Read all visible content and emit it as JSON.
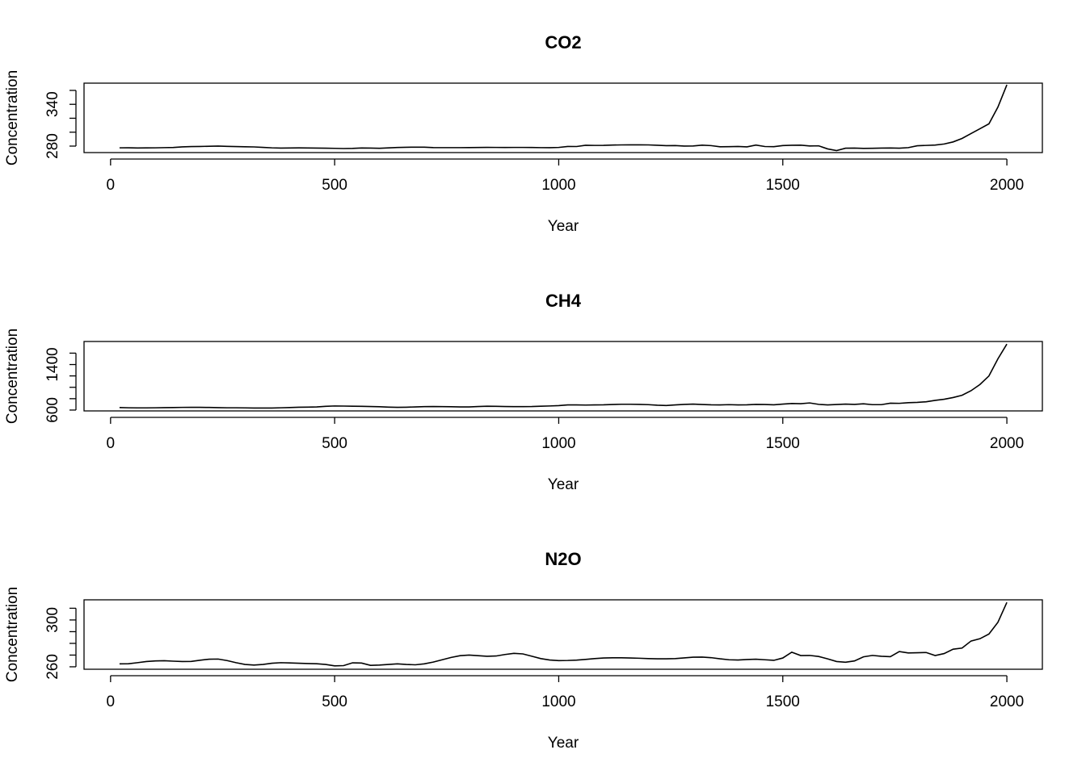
{
  "chart_data": [
    {
      "type": "line",
      "title": "CO2",
      "xlabel": "Year",
      "ylabel": "Concentration",
      "color": "#000000",
      "xlim": [
        -59.2,
        2079.2
      ],
      "xticks": [
        0,
        500,
        1000,
        1500,
        2000
      ],
      "ylim": [
        270.7,
        370.4
      ],
      "yticks": [
        280,
        300,
        320,
        340,
        360
      ],
      "series": [
        {
          "name": "CO2",
          "color": "#000000",
          "x": [
            20,
            40,
            60,
            80,
            100,
            120,
            140,
            160,
            180,
            200,
            220,
            240,
            260,
            280,
            300,
            320,
            340,
            360,
            380,
            400,
            420,
            440,
            460,
            480,
            500,
            520,
            540,
            560,
            580,
            600,
            620,
            640,
            660,
            680,
            700,
            720,
            740,
            760,
            780,
            800,
            820,
            840,
            860,
            880,
            900,
            920,
            940,
            960,
            980,
            1000,
            1020,
            1040,
            1060,
            1080,
            1100,
            1120,
            1140,
            1160,
            1180,
            1200,
            1220,
            1240,
            1260,
            1280,
            1300,
            1320,
            1340,
            1360,
            1380,
            1400,
            1420,
            1440,
            1460,
            1480,
            1500,
            1520,
            1540,
            1560,
            1580,
            1600,
            1620,
            1640,
            1660,
            1680,
            1700,
            1720,
            1740,
            1760,
            1780,
            1800,
            1820,
            1840,
            1860,
            1880,
            1900,
            1920,
            1940,
            1960,
            1980,
            2000
          ],
          "values": [
            277.5,
            277.6,
            277.3,
            277.4,
            277.5,
            277.8,
            278,
            278.9,
            279.3,
            279.5,
            279.8,
            280,
            279.6,
            279.3,
            279,
            278.8,
            278.2,
            277.5,
            277.2,
            277.3,
            277.4,
            277.3,
            277.1,
            277,
            276.8,
            276.5,
            276.7,
            277.3,
            277.1,
            276.9,
            277.4,
            278,
            278.3,
            278.5,
            278.4,
            277.9,
            277.8,
            277.8,
            277.8,
            277.9,
            278,
            278.2,
            278.1,
            278,
            278.1,
            278.1,
            278,
            277.8,
            277.7,
            278.1,
            279.5,
            279.4,
            281.2,
            281,
            281.1,
            281.5,
            281.7,
            281.8,
            281.8,
            281.7,
            281.2,
            280.6,
            280.8,
            280.1,
            280.2,
            281.4,
            280.7,
            279,
            279.2,
            279.5,
            278.9,
            281.5,
            279.4,
            279.2,
            280.8,
            281.2,
            281.3,
            280.2,
            280.4,
            276,
            273.5,
            277,
            277.2,
            276.7,
            276.9,
            277.2,
            277.3,
            277,
            277.8,
            280.5,
            281,
            281.5,
            283,
            286,
            291,
            298,
            305,
            312,
            336,
            368
          ]
        }
      ]
    },
    {
      "type": "line",
      "title": "CH4",
      "xlabel": "Year",
      "ylabel": "Concentration",
      "color": "#000000",
      "xlim": [
        -59.2,
        2079.2
      ],
      "xticks": [
        0,
        500,
        1000,
        1500,
        2000
      ],
      "ylim": [
        585,
        1805
      ],
      "yticks": [
        600,
        800,
        1000,
        1200,
        1400,
        1600
      ],
      "series": [
        {
          "name": "CH4",
          "color": "#000000",
          "x": [
            20,
            40,
            60,
            80,
            100,
            120,
            140,
            160,
            180,
            200,
            220,
            240,
            260,
            280,
            300,
            320,
            340,
            360,
            380,
            400,
            420,
            440,
            460,
            480,
            500,
            520,
            540,
            560,
            580,
            600,
            620,
            640,
            660,
            680,
            700,
            720,
            740,
            760,
            780,
            800,
            820,
            840,
            860,
            880,
            900,
            920,
            940,
            960,
            980,
            1000,
            1020,
            1040,
            1060,
            1080,
            1100,
            1120,
            1140,
            1160,
            1180,
            1200,
            1220,
            1240,
            1260,
            1280,
            1300,
            1320,
            1340,
            1360,
            1380,
            1400,
            1420,
            1440,
            1460,
            1480,
            1500,
            1520,
            1540,
            1560,
            1580,
            1600,
            1620,
            1640,
            1660,
            1680,
            1700,
            1720,
            1740,
            1760,
            1780,
            1800,
            1820,
            1840,
            1860,
            1880,
            1900,
            1920,
            1940,
            1960,
            1980,
            2000
          ],
          "values": [
            645,
            640,
            638,
            638,
            640,
            642,
            645,
            647,
            648,
            648,
            646,
            642,
            640,
            640,
            638,
            636,
            635,
            636,
            640,
            645,
            650,
            652,
            655,
            665,
            672,
            670,
            668,
            665,
            662,
            658,
            652,
            648,
            650,
            655,
            660,
            662,
            660,
            658,
            655,
            655,
            662,
            668,
            666,
            662,
            660,
            660,
            662,
            668,
            672,
            678,
            690,
            690,
            688,
            690,
            692,
            698,
            702,
            702,
            700,
            695,
            685,
            680,
            690,
            700,
            705,
            698,
            692,
            690,
            695,
            690,
            692,
            700,
            698,
            692,
            705,
            715,
            712,
            725,
            700,
            690,
            698,
            705,
            700,
            710,
            695,
            695,
            720,
            718,
            730,
            735,
            745,
            770,
            790,
            820,
            860,
            940,
            1050,
            1200,
            1500,
            1760
          ]
        }
      ]
    },
    {
      "type": "line",
      "title": "N2O",
      "xlabel": "Year",
      "ylabel": "Concentration",
      "color": "#000000",
      "xlim": [
        -59.2,
        2079.2
      ],
      "xticks": [
        0,
        500,
        1000,
        1500,
        2000
      ],
      "ylim": [
        257.9,
        317.2
      ],
      "yticks": [
        260,
        270,
        280,
        290,
        300,
        310
      ],
      "series": [
        {
          "name": "N2O",
          "color": "#000000",
          "x": [
            20,
            40,
            60,
            80,
            100,
            120,
            140,
            160,
            180,
            200,
            220,
            240,
            260,
            280,
            300,
            320,
            340,
            360,
            380,
            400,
            420,
            440,
            460,
            480,
            500,
            520,
            540,
            560,
            580,
            600,
            620,
            640,
            660,
            680,
            700,
            720,
            740,
            760,
            780,
            800,
            820,
            840,
            860,
            880,
            900,
            920,
            940,
            960,
            980,
            1000,
            1020,
            1040,
            1060,
            1080,
            1100,
            1120,
            1140,
            1160,
            1180,
            1200,
            1220,
            1240,
            1260,
            1280,
            1300,
            1320,
            1340,
            1360,
            1380,
            1400,
            1420,
            1440,
            1460,
            1480,
            1500,
            1520,
            1540,
            1560,
            1580,
            1600,
            1620,
            1640,
            1660,
            1680,
            1700,
            1720,
            1740,
            1760,
            1780,
            1800,
            1820,
            1840,
            1860,
            1880,
            1900,
            1920,
            1940,
            1960,
            1980,
            2000
          ],
          "values": [
            262.5,
            262.6,
            263.5,
            264.5,
            265,
            265.2,
            264.8,
            264.5,
            264.6,
            265.6,
            266.5,
            266.6,
            265.3,
            263.5,
            262,
            261.5,
            262,
            263,
            263.5,
            263.3,
            263,
            262.8,
            262.6,
            262,
            260.8,
            261,
            263.4,
            263.2,
            261.2,
            261.5,
            262,
            262.5,
            262,
            261.7,
            262.5,
            264,
            266,
            268,
            269.5,
            270,
            269.5,
            269,
            269.2,
            270.5,
            271.5,
            271,
            269,
            267,
            265.8,
            265.3,
            265.4,
            265.7,
            266.3,
            267,
            267.5,
            267.7,
            267.7,
            267.5,
            267.3,
            267,
            266.8,
            266.8,
            267,
            267.6,
            268.2,
            268.3,
            267.8,
            266.8,
            266,
            265.8,
            266.2,
            266.5,
            266,
            265.5,
            267.5,
            272.5,
            269.6,
            269.7,
            268.8,
            266.8,
            264.5,
            263.9,
            265,
            268.5,
            269.7,
            269,
            268.6,
            273,
            271.8,
            272,
            272.2,
            269.6,
            271.3,
            275,
            276,
            282,
            284,
            288,
            298,
            315
          ]
        }
      ]
    }
  ]
}
